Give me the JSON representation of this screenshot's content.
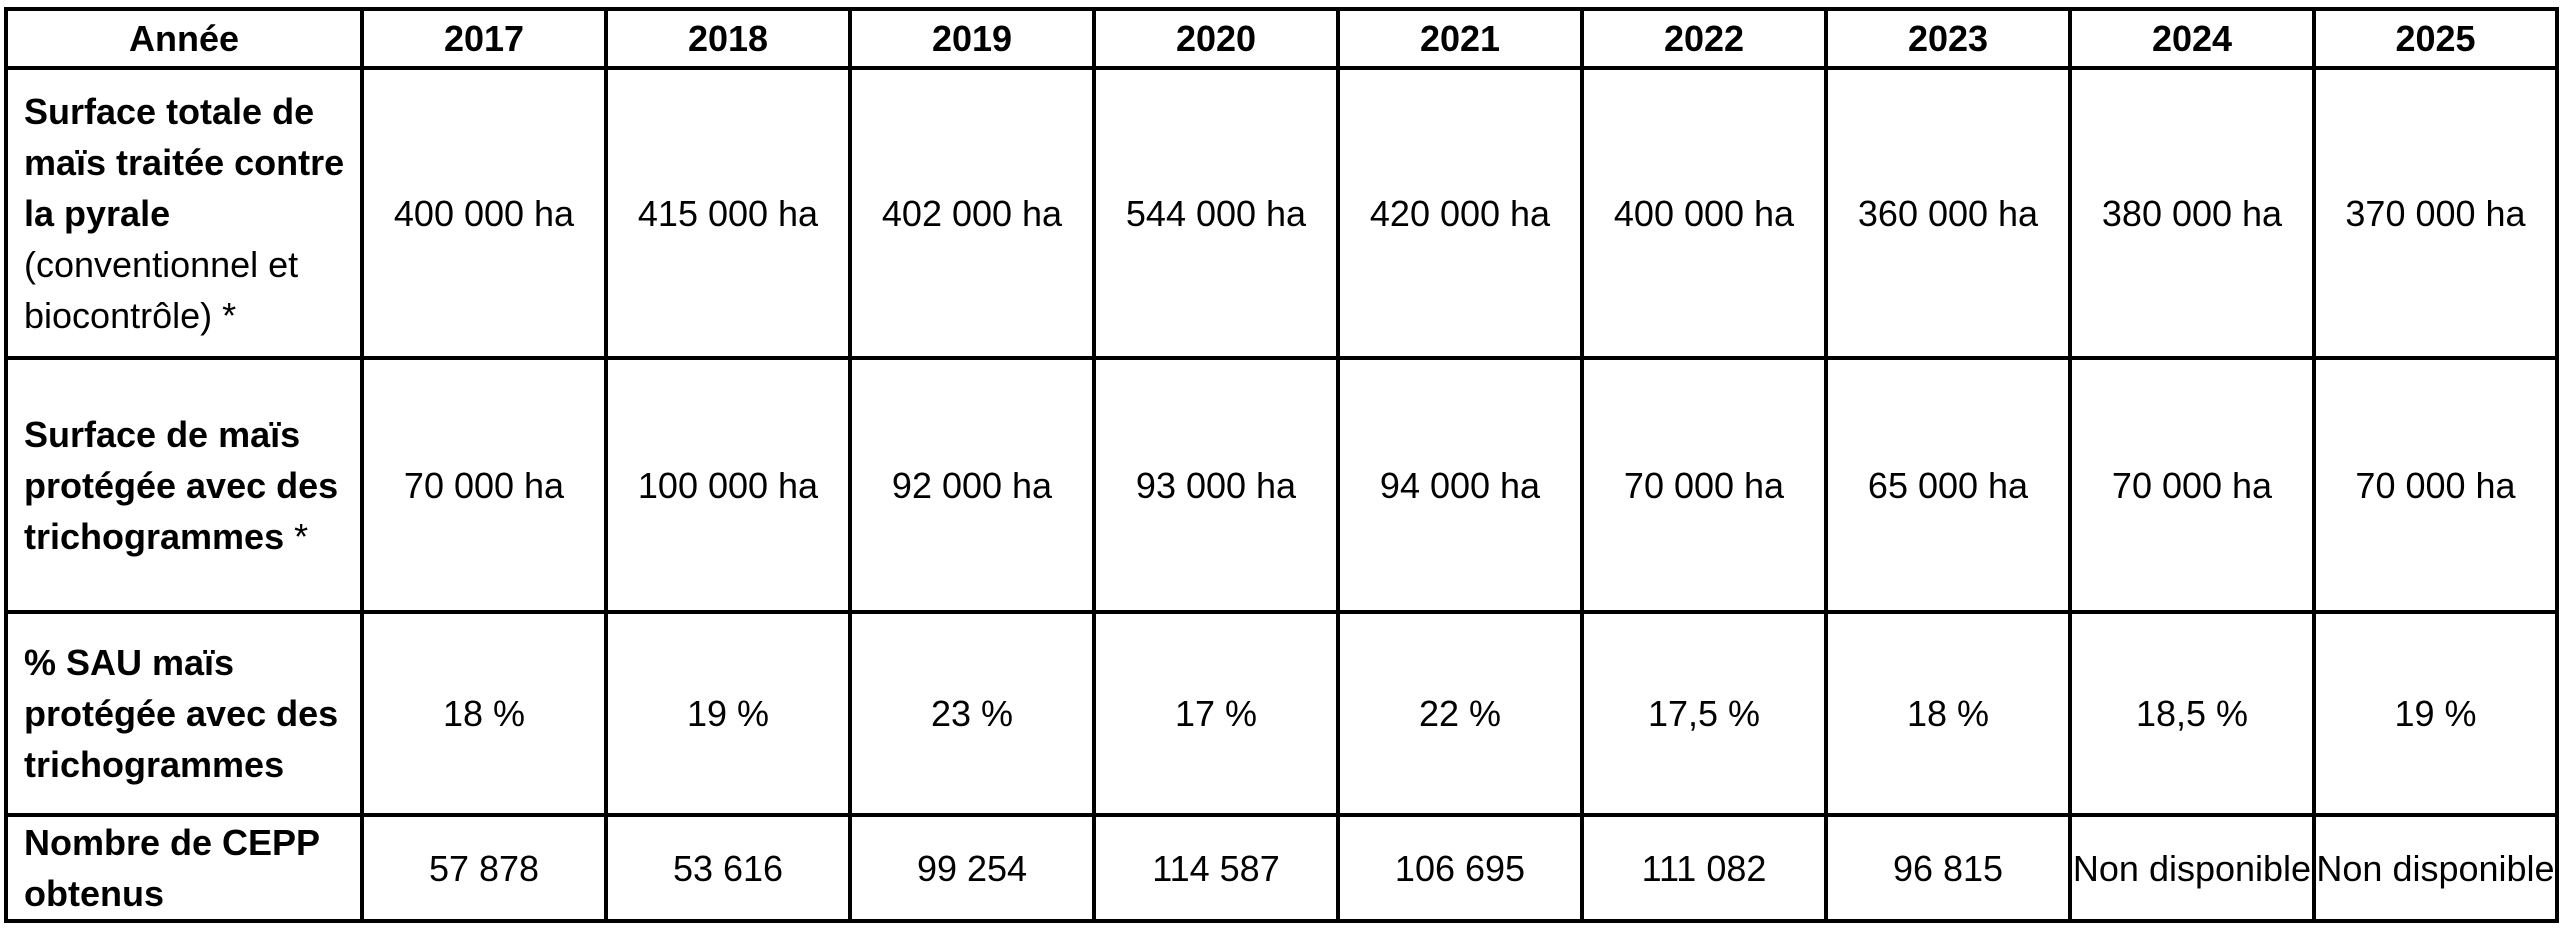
{
  "table": {
    "headers": [
      "Année",
      "2017",
      "2018",
      "2019",
      "2020",
      "2021",
      "2022",
      "2023",
      "2024",
      "2025"
    ],
    "rows": [
      {
        "label_bold": "Surface totale de maïs traitée contre la pyrale",
        "label_rest": " (conventionnel et biocontrôle) *",
        "values": [
          "400 000 ha",
          "415 000 ha",
          "402 000 ha",
          "544 000 ha",
          "420 000 ha",
          "400 000 ha",
          "360 000 ha",
          "380 000 ha",
          "370 000 ha"
        ]
      },
      {
        "label_bold": "Surface de maïs protégée avec des trichogrammes",
        "label_rest": " *",
        "values": [
          "70 000 ha",
          "100 000 ha",
          "92 000 ha",
          "93 000 ha",
          "94 000 ha",
          "70 000 ha",
          "65 000 ha",
          "70 000 ha",
          "70 000 ha"
        ]
      },
      {
        "label_bold": "% SAU maïs protégée avec des trichogrammes",
        "label_rest": "",
        "values": [
          "18 %",
          "19 %",
          "23 %",
          "17 %",
          "22 %",
          "17,5 %",
          "18 %",
          "18,5 %",
          "19 %"
        ]
      },
      {
        "label_bold": "Nombre de CEPP obtenus",
        "label_rest": "",
        "values": [
          "57 878",
          "53 616",
          "99 254",
          "114 587",
          "106 695",
          "111 082",
          "96 815",
          "Non disponible",
          "Non disponible"
        ]
      }
    ]
  }
}
